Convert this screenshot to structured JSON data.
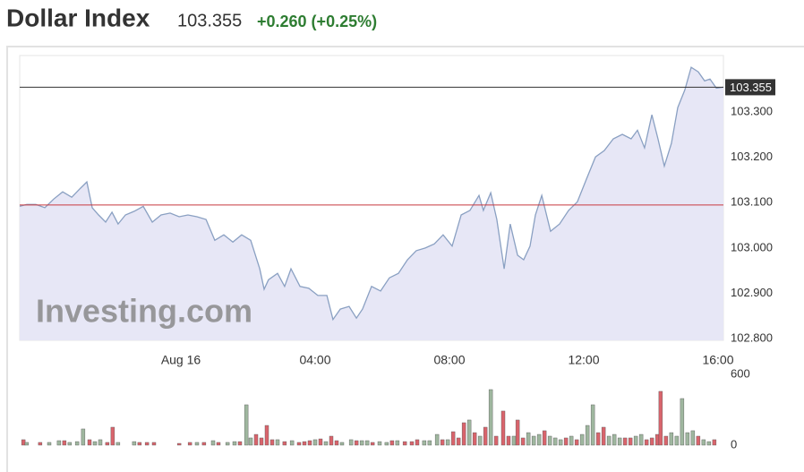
{
  "header": {
    "title": "Dollar Index",
    "price": "103.355",
    "change": "+0.260 (+0.25%)"
  },
  "chart_data": [
    {
      "type": "line",
      "watermark": "Investing.com",
      "color": "#8aa0c2",
      "fill": "#e7e7f6",
      "x": [
        -4.8,
        -4.59,
        -4.32,
        -4.05,
        -3.79,
        -3.52,
        -3.25,
        -2.99,
        -2.8,
        -2.64,
        -2.45,
        -2.24,
        -2.05,
        -1.87,
        -1.65,
        -1.39,
        -1.12,
        -0.85,
        -0.59,
        -0.32,
        -0.05,
        0.21,
        0.48,
        0.75,
        1.01,
        1.28,
        1.55,
        1.81,
        2.08,
        2.35,
        2.48,
        2.61,
        2.88,
        3.09,
        3.28,
        3.55,
        3.81,
        4.08,
        4.35,
        4.53,
        4.75,
        5.01,
        5.23,
        5.41,
        5.68,
        5.95,
        6.21,
        6.48,
        6.75,
        7.01,
        7.28,
        7.55,
        7.81,
        8.08,
        8.35,
        8.61,
        8.88,
        9.01,
        9.23,
        9.41,
        9.63,
        9.81,
        10.03,
        10.21,
        10.4,
        10.56,
        10.75,
        11.01,
        11.28,
        11.55,
        11.81,
        12.08,
        12.35,
        12.61,
        12.88,
        13.15,
        13.41,
        13.6,
        13.81,
        14.03,
        14.21,
        14.4,
        14.61,
        14.8,
        15.01,
        15.2,
        15.41,
        15.6,
        15.76,
        15.95,
        16.16
      ],
      "values": [
        103.092,
        103.096,
        103.096,
        103.089,
        103.108,
        103.124,
        103.112,
        103.132,
        103.146,
        103.089,
        103.073,
        103.057,
        103.079,
        103.053,
        103.073,
        103.081,
        103.092,
        103.057,
        103.073,
        103.077,
        103.069,
        103.073,
        103.069,
        103.063,
        103.017,
        103.029,
        103.013,
        103.029,
        103.017,
        102.954,
        102.909,
        102.93,
        102.944,
        102.915,
        102.954,
        102.915,
        102.911,
        102.895,
        102.895,
        102.842,
        102.865,
        102.871,
        102.845,
        102.865,
        102.915,
        102.905,
        102.934,
        102.944,
        102.974,
        102.994,
        103.0,
        103.009,
        103.029,
        103.004,
        103.073,
        103.083,
        103.116,
        103.083,
        103.122,
        103.063,
        102.954,
        103.053,
        102.984,
        102.974,
        103.004,
        103.073,
        103.116,
        103.037,
        103.053,
        103.083,
        103.102,
        103.152,
        103.201,
        103.215,
        103.241,
        103.251,
        103.241,
        103.26,
        103.221,
        103.294,
        103.241,
        103.181,
        103.231,
        103.31,
        103.349,
        103.399,
        103.389,
        103.369,
        103.373,
        103.353,
        103.355
      ],
      "xlim": [
        -4.8,
        16.16
      ],
      "xticks": [
        {
          "value": 0,
          "label": "Aug 16"
        },
        {
          "value": 4,
          "label": "04:00"
        },
        {
          "value": 8,
          "label": "08:00"
        },
        {
          "value": 12,
          "label": "12:00"
        },
        {
          "value": 16,
          "label": "16:00"
        }
      ],
      "ylim": [
        102.796,
        103.425
      ],
      "yticks": [
        {
          "value": 102.8,
          "label": "102.800"
        },
        {
          "value": 102.9,
          "label": "102.900"
        },
        {
          "value": 103.0,
          "label": "103.000"
        },
        {
          "value": 103.1,
          "label": "103.100"
        },
        {
          "value": 103.2,
          "label": "103.200"
        },
        {
          "value": 103.3,
          "label": "103.300"
        }
      ],
      "reference_lines": [
        {
          "value": 103.355,
          "label": "103.355",
          "color": "#333333"
        },
        {
          "value": 103.095,
          "color": "#c8393f"
        }
      ]
    },
    {
      "type": "bar",
      "x": [
        -4.69,
        -4.59,
        -4.19,
        -3.92,
        -3.63,
        -3.47,
        -3.31,
        -3.09,
        -2.91,
        -2.72,
        -2.56,
        -2.4,
        -2.19,
        -2.03,
        -1.87,
        -1.39,
        -1.23,
        -1.01,
        -0.8,
        -0.05,
        0.27,
        0.48,
        0.69,
        0.96,
        1.12,
        1.39,
        1.6,
        1.76,
        1.95,
        2.08,
        2.24,
        2.4,
        2.56,
        2.72,
        2.88,
        3.09,
        3.31,
        3.52,
        3.68,
        3.84,
        4.0,
        4.16,
        4.32,
        4.48,
        4.64,
        4.8,
        5.07,
        5.23,
        5.39,
        5.55,
        5.71,
        5.92,
        6.13,
        6.29,
        6.45,
        6.67,
        6.88,
        7.04,
        7.25,
        7.41,
        7.63,
        7.79,
        7.95,
        8.11,
        8.27,
        8.43,
        8.59,
        8.75,
        8.91,
        9.07,
        9.23,
        9.39,
        9.6,
        9.76,
        9.92,
        10.03,
        10.19,
        10.35,
        10.51,
        10.67,
        10.83,
        10.99,
        11.15,
        11.31,
        11.47,
        11.63,
        11.79,
        11.95,
        12.11,
        12.27,
        12.43,
        12.59,
        12.75,
        12.91,
        13.07,
        13.23,
        13.39,
        13.55,
        13.71,
        13.87,
        14.03,
        14.19,
        14.29,
        14.45,
        14.61,
        14.77,
        14.93,
        15.09,
        15.25,
        15.41,
        15.57,
        15.73,
        15.89
      ],
      "values": [
        46,
        23,
        23,
        23,
        38,
        38,
        23,
        30,
        137,
        46,
        30,
        46,
        23,
        152,
        23,
        30,
        23,
        23,
        23,
        15,
        23,
        23,
        23,
        38,
        23,
        23,
        30,
        30,
        342,
        61,
        91,
        61,
        167,
        46,
        46,
        30,
        38,
        23,
        30,
        38,
        46,
        53,
        30,
        76,
        38,
        23,
        46,
        38,
        38,
        38,
        23,
        30,
        23,
        38,
        38,
        30,
        30,
        46,
        38,
        38,
        91,
        46,
        46,
        114,
        61,
        190,
        213,
        106,
        76,
        152,
        471,
        76,
        289,
        76,
        76,
        213,
        61,
        106,
        76,
        91,
        122,
        76,
        61,
        46,
        61,
        76,
        46,
        91,
        167,
        342,
        106,
        152,
        76,
        91,
        61,
        61,
        61,
        76,
        91,
        46,
        61,
        91,
        456,
        76,
        106,
        76,
        395,
        106,
        122,
        76,
        46,
        30,
        46
      ],
      "directions": [
        "down",
        "up",
        "down",
        "up",
        "up",
        "down",
        "up",
        "up",
        "up",
        "down",
        "up",
        "up",
        "down",
        "down",
        "up",
        "up",
        "down",
        "down",
        "down",
        "down",
        "down",
        "up",
        "down",
        "up",
        "down",
        "up",
        "up",
        "down",
        "up",
        "up",
        "down",
        "down",
        "down",
        "down",
        "up",
        "down",
        "up",
        "down",
        "down",
        "down",
        "up",
        "down",
        "up",
        "down",
        "down",
        "up",
        "up",
        "down",
        "up",
        "up",
        "down",
        "up",
        "up",
        "down",
        "up",
        "down",
        "down",
        "down",
        "up",
        "up",
        "up",
        "down",
        "up",
        "down",
        "down",
        "down",
        "up",
        "down",
        "up",
        "down",
        "up",
        "down",
        "down",
        "down",
        "up",
        "down",
        "down",
        "up",
        "up",
        "up",
        "down",
        "up",
        "up",
        "up",
        "down",
        "up",
        "down",
        "up",
        "up",
        "up",
        "down",
        "down",
        "up",
        "up",
        "up",
        "down",
        "down",
        "up",
        "up",
        "down",
        "down",
        "down",
        "down",
        "down",
        "up",
        "up",
        "up",
        "up",
        "up",
        "down",
        "up",
        "up",
        "down"
      ],
      "colors": {
        "up": "#9fb79f",
        "down": "#d9646c"
      },
      "xlim": [
        -4.8,
        16.16
      ],
      "ylim": [
        0,
        600
      ],
      "yticks": [
        0,
        600
      ]
    }
  ]
}
